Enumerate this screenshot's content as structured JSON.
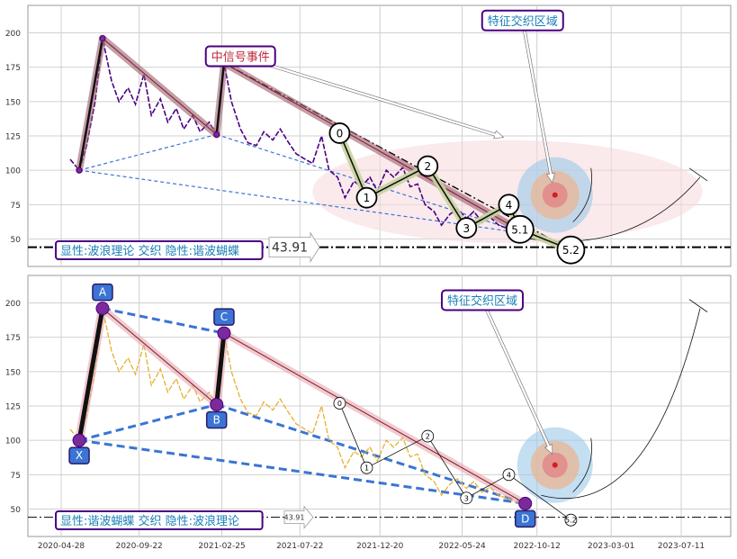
{
  "colors": {
    "panel_bg": "#ffffff",
    "grid": "#d0d0d0",
    "frame": "#9a9a9a",
    "price_top": "#4b0082",
    "price_bottom": "#e8b030",
    "harmonic_fill": "#c9a0a0",
    "wave_fill": "#c8d4a0",
    "blue_dash": "#3b74d4",
    "label_border": "#4b0082",
    "label_text_blue": "#1a7fb8",
    "label_text_red": "#c0283c",
    "point_box": "#3b74d4",
    "target_outer": "#9cc8ea",
    "target_mid": "#e8b898",
    "target_inner": "#e08888",
    "target_dot": "#d02020"
  },
  "icons": {
    "annotation_arrow": "hollow-arrow-icon",
    "level_tag": "arrow-tag-icon",
    "target": "target-icon"
  },
  "chart_data": [
    {
      "type": "line",
      "panel": "top",
      "ylim": [
        30,
        220
      ],
      "yticks": [
        50,
        75,
        100,
        125,
        150,
        175,
        200
      ],
      "grid": true,
      "price_series_dates": [
        "2020-05-15",
        "2020-06-01",
        "2020-06-15",
        "2020-07-01",
        "2020-07-15",
        "2020-08-01",
        "2020-08-15",
        "2020-09-01",
        "2020-09-15",
        "2020-10-01",
        "2020-10-15",
        "2020-11-01",
        "2020-11-15",
        "2020-12-01",
        "2020-12-15",
        "2021-01-01",
        "2021-01-15",
        "2021-02-01",
        "2021-02-15",
        "2021-03-01",
        "2021-03-15",
        "2021-04-01",
        "2021-04-15",
        "2021-05-01",
        "2021-05-15",
        "2021-06-01",
        "2021-06-15",
        "2021-07-01",
        "2021-07-15",
        "2021-08-01",
        "2021-08-15",
        "2021-09-01",
        "2021-09-15",
        "2021-10-01",
        "2021-10-15",
        "2021-11-01",
        "2021-11-15",
        "2021-12-01",
        "2021-12-15",
        "2022-01-01",
        "2022-01-15",
        "2022-02-01",
        "2022-02-15",
        "2022-03-01",
        "2022-03-15",
        "2022-04-01",
        "2022-04-15",
        "2022-05-01",
        "2022-05-15",
        "2022-06-01",
        "2022-06-15",
        "2022-07-01",
        "2022-07-15",
        "2022-08-01",
        "2022-08-15",
        "2022-09-01",
        "2022-09-15",
        "2022-10-01"
      ],
      "price_series_values": [
        108,
        100,
        118,
        150,
        196,
        165,
        150,
        160,
        148,
        170,
        140,
        152,
        135,
        145,
        130,
        140,
        128,
        135,
        126,
        178,
        150,
        130,
        120,
        118,
        128,
        122,
        130,
        120,
        112,
        108,
        105,
        125,
        100,
        95,
        80,
        92,
        88,
        95,
        85,
        100,
        95,
        102,
        88,
        90,
        75,
        70,
        60,
        68,
        72,
        65,
        70,
        62,
        66,
        60,
        58,
        55,
        57,
        54
      ],
      "harmonic_points": [
        {
          "label": "X",
          "date": "2020-06-01",
          "value": 100
        },
        {
          "label": "A",
          "date": "2020-07-15",
          "value": 196
        },
        {
          "label": "B",
          "date": "2021-02-15",
          "value": 126
        },
        {
          "label": "C",
          "date": "2021-03-01",
          "value": 178
        },
        {
          "label": "D",
          "date": "2022-09-20",
          "value": 54
        }
      ],
      "wave_points": [
        {
          "label": "0",
          "date": "2021-10-05",
          "value": 127
        },
        {
          "label": "1",
          "date": "2021-11-25",
          "value": 80
        },
        {
          "label": "2",
          "date": "2022-03-20",
          "value": 103
        },
        {
          "label": "3",
          "date": "2022-06-01",
          "value": 58
        },
        {
          "label": "4",
          "date": "2022-08-20",
          "value": 75
        },
        {
          "label": "5.1",
          "date": "2022-09-10",
          "value": 57
        },
        {
          "label": "5.2",
          "date": "2022-12-15",
          "value": 42
        }
      ],
      "horizontal_level": {
        "value": 44,
        "label": "43.91"
      },
      "ellipse": {
        "date_from": "2021-08-15",
        "date_to": "2023-08-20",
        "value_from": 47,
        "value_to": 122
      },
      "target": {
        "date": "2022-11-15",
        "value": 82
      },
      "annotations": [
        {
          "text": "中信号事件",
          "date": "2021-04-01",
          "value": 183,
          "arrow_to": {
            "date": "2022-08-10",
            "value": 124
          }
        },
        {
          "text": "特征交织区域",
          "date": "2022-09-15",
          "value": 209,
          "arrow_to": {
            "date": "2022-11-10",
            "value": 91
          }
        }
      ],
      "bottom_label": "显性:波浪理论 交织 隐性:谐波蝴蝶"
    },
    {
      "type": "line",
      "panel": "bottom",
      "ylim": [
        30,
        220
      ],
      "yticks": [
        50,
        75,
        100,
        125,
        150,
        175,
        200
      ],
      "xticks": [
        "2020-04-28",
        "2020-09-22",
        "2021-02-25",
        "2021-07-22",
        "2021-12-20",
        "2022-05-24",
        "2022-10-12",
        "2023-03-01",
        "2023-07-11"
      ],
      "grid": true,
      "price_series_dates": [
        "2020-05-15",
        "2020-06-01",
        "2020-06-15",
        "2020-07-01",
        "2020-07-15",
        "2020-08-01",
        "2020-08-15",
        "2020-09-01",
        "2020-09-15",
        "2020-10-01",
        "2020-10-15",
        "2020-11-01",
        "2020-11-15",
        "2020-12-01",
        "2020-12-15",
        "2021-01-01",
        "2021-01-15",
        "2021-02-01",
        "2021-02-15",
        "2021-03-01",
        "2021-03-15",
        "2021-04-01",
        "2021-04-15",
        "2021-05-01",
        "2021-05-15",
        "2021-06-01",
        "2021-06-15",
        "2021-07-01",
        "2021-07-15",
        "2021-08-01",
        "2021-08-15",
        "2021-09-01",
        "2021-09-15",
        "2021-10-01",
        "2021-10-15",
        "2021-11-01",
        "2021-11-15",
        "2021-12-01",
        "2021-12-15",
        "2022-01-01",
        "2022-01-15",
        "2022-02-01",
        "2022-02-15",
        "2022-03-01",
        "2022-03-15",
        "2022-04-01",
        "2022-04-15",
        "2022-05-01",
        "2022-05-15",
        "2022-06-01",
        "2022-06-15",
        "2022-07-01",
        "2022-07-15",
        "2022-08-01",
        "2022-08-15",
        "2022-09-01",
        "2022-09-15",
        "2022-10-01"
      ],
      "price_series_values": [
        108,
        100,
        118,
        150,
        196,
        165,
        150,
        160,
        148,
        170,
        140,
        152,
        135,
        145,
        130,
        140,
        128,
        135,
        126,
        178,
        150,
        130,
        120,
        118,
        128,
        122,
        130,
        120,
        112,
        108,
        105,
        125,
        100,
        95,
        80,
        92,
        88,
        95,
        85,
        100,
        95,
        102,
        88,
        90,
        75,
        70,
        60,
        68,
        72,
        65,
        70,
        62,
        66,
        60,
        58,
        55,
        57,
        54
      ],
      "harmonic_points": [
        {
          "label": "X",
          "date": "2020-06-01",
          "value": 100
        },
        {
          "label": "A",
          "date": "2020-07-15",
          "value": 196
        },
        {
          "label": "B",
          "date": "2021-02-15",
          "value": 126
        },
        {
          "label": "C",
          "date": "2021-03-01",
          "value": 178
        },
        {
          "label": "D",
          "date": "2022-09-20",
          "value": 54
        }
      ],
      "wave_points": [
        {
          "label": "0",
          "date": "2021-10-05",
          "value": 127
        },
        {
          "label": "1",
          "date": "2021-11-25",
          "value": 80
        },
        {
          "label": "2",
          "date": "2022-03-20",
          "value": 103
        },
        {
          "label": "3",
          "date": "2022-06-01",
          "value": 58
        },
        {
          "label": "4",
          "date": "2022-08-20",
          "value": 75
        },
        {
          "label": "5.2",
          "date": "2022-12-15",
          "value": 42
        }
      ],
      "horizontal_level": {
        "value": 44,
        "label": "43.91"
      },
      "target": {
        "date": "2022-11-15",
        "value": 82
      },
      "annotations": [
        {
          "text": "特征交织区域",
          "date": "2022-07-01",
          "value": 202,
          "arrow_to": {
            "date": "2022-11-10",
            "value": 90
          }
        }
      ],
      "bottom_label": "显性:谐波蝴蝶 交织 隐性:波浪理论"
    }
  ]
}
